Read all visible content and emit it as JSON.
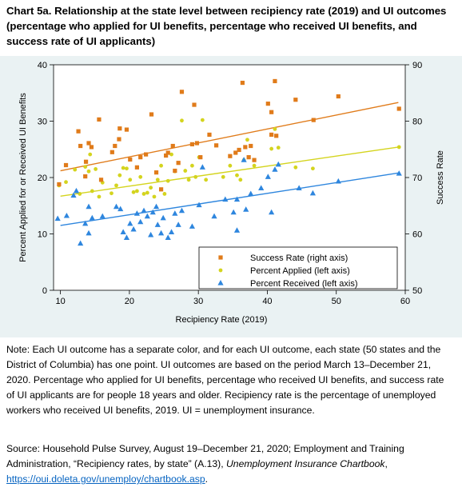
{
  "title": "Chart 5a. Relationship at the state level between recipiency rate (2019) and UI outcomes (percentage who applied for UI benefits, percentage who received UI benefits, and success rate of UI applicants)",
  "note": "Note: Each UI outcome has a separate color, and for each UI outcome, each state (50 states and the District of Columbia) has one point. UI outcomes are based on the period March 13–December 21, 2020.  Percentage who applied for UI benefits, percentage who received UI benefits, and success rate of UI applicants are for people 18 years and older. Recipiency rate is the percentage of unemployed workers who received UI benefits, 2019. UI = unemployment insurance.",
  "source": {
    "prefix": "Source: Household Pulse Survey, August 19–December 21, 2020;  Employment and Training Administration, “Recipiency rates, by state” (A.13), ",
    "italic": "Unemployment Insurance Chartbook",
    "comma": ", ",
    "link": "https://oui.doleta.gov/unemploy/chartbook.asp",
    "end": "."
  },
  "colors": {
    "success": "#e07b1a",
    "applied": "#d4d41e",
    "received": "#2e86de",
    "plot_bg": "#eaf2f3"
  },
  "chart_data": {
    "type": "scatter",
    "xlabel": "Recipiency Rate (2019)",
    "ylabel_left": "Percent Applied for or Received UI Benefits",
    "ylabel_right": "Success Rate",
    "xlim": [
      9,
      60
    ],
    "ylim_left": [
      0,
      40
    ],
    "ylim_right": [
      50,
      90
    ],
    "x_ticks": [
      10,
      20,
      30,
      40,
      50,
      60
    ],
    "y_ticks_left": [
      0,
      10,
      20,
      30,
      40
    ],
    "y_ticks_right": [
      50,
      60,
      70,
      80,
      90
    ],
    "grid": false,
    "legend_position": "bottom-right",
    "series": [
      {
        "name": "Success Rate (right axis)",
        "axis": "right",
        "marker": "square",
        "points": [
          [
            9.8,
            68.8
          ],
          [
            10.8,
            72.2
          ],
          [
            12.6,
            78.2
          ],
          [
            12.9,
            75.6
          ],
          [
            13.6,
            70.2
          ],
          [
            13.7,
            72.8
          ],
          [
            14.1,
            76.1
          ],
          [
            14.5,
            75.4
          ],
          [
            15.6,
            80.3
          ],
          [
            15.9,
            69.6
          ],
          [
            17.5,
            74.5
          ],
          [
            17.9,
            75.6
          ],
          [
            18.5,
            76.8
          ],
          [
            18.6,
            78.7
          ],
          [
            19.6,
            78.5
          ],
          [
            20.1,
            73.2
          ],
          [
            21.1,
            71.8
          ],
          [
            21.6,
            73.6
          ],
          [
            22.4,
            74.1
          ],
          [
            23.2,
            81.2
          ],
          [
            23.9,
            70.9
          ],
          [
            24.6,
            67.9
          ],
          [
            25.3,
            73.9
          ],
          [
            25.6,
            74.4
          ],
          [
            26.3,
            75.6
          ],
          [
            26.6,
            71.2
          ],
          [
            27.1,
            72.6
          ],
          [
            27.6,
            85.2
          ],
          [
            29.1,
            75.9
          ],
          [
            29.4,
            82.9
          ],
          [
            29.8,
            76.1
          ],
          [
            30.3,
            73.6
          ],
          [
            31.6,
            77.6
          ],
          [
            32.6,
            75.7
          ],
          [
            34.6,
            73.8
          ],
          [
            35.4,
            74.4
          ],
          [
            35.9,
            74.9
          ],
          [
            36.4,
            86.8
          ],
          [
            36.8,
            75.4
          ],
          [
            37.6,
            75.6
          ],
          [
            37.3,
            73.6
          ],
          [
            38.1,
            73.1
          ],
          [
            40.1,
            83.1
          ],
          [
            40.6,
            81.6
          ],
          [
            41.1,
            87.1
          ],
          [
            40.6,
            77.6
          ],
          [
            41.3,
            77.4
          ],
          [
            44.1,
            83.8
          ],
          [
            46.7,
            80.2
          ],
          [
            50.3,
            84.4
          ],
          [
            59.1,
            82.2
          ]
        ]
      },
      {
        "name": "Percent Applied (left axis)",
        "axis": "left",
        "marker": "circle",
        "points": [
          [
            9.8,
            18.6
          ],
          [
            10.8,
            19.2
          ],
          [
            12.1,
            21.4
          ],
          [
            12.8,
            17.1
          ],
          [
            13.6,
            21.9
          ],
          [
            14.1,
            21.1
          ],
          [
            14.3,
            24.1
          ],
          [
            14.6,
            17.6
          ],
          [
            15.1,
            21.5
          ],
          [
            15.6,
            16.6
          ],
          [
            16.1,
            19.1
          ],
          [
            17.4,
            17.2
          ],
          [
            18.1,
            18.6
          ],
          [
            18.6,
            20.4
          ],
          [
            19.1,
            21.7
          ],
          [
            19.6,
            21.6
          ],
          [
            20.1,
            19.6
          ],
          [
            20.6,
            17.4
          ],
          [
            21.1,
            17.6
          ],
          [
            21.6,
            20.1
          ],
          [
            22.1,
            17.1
          ],
          [
            22.6,
            17.3
          ],
          [
            23.1,
            18.2
          ],
          [
            23.6,
            16.6
          ],
          [
            24.1,
            19.6
          ],
          [
            24.6,
            22.1
          ],
          [
            25.1,
            17.1
          ],
          [
            25.6,
            19.4
          ],
          [
            26.1,
            24.1
          ],
          [
            26.6,
            21.1
          ],
          [
            27.6,
            30.1
          ],
          [
            28.1,
            21.2
          ],
          [
            28.6,
            19.6
          ],
          [
            29.1,
            22.1
          ],
          [
            29.6,
            20.1
          ],
          [
            30.1,
            23.6
          ],
          [
            30.6,
            30.2
          ],
          [
            31.1,
            19.6
          ],
          [
            33.6,
            20.1
          ],
          [
            34.6,
            22.1
          ],
          [
            35.6,
            20.4
          ],
          [
            36.1,
            19.6
          ],
          [
            36.6,
            23.1
          ],
          [
            37.1,
            26.7
          ],
          [
            38.1,
            22.1
          ],
          [
            40.6,
            25.1
          ],
          [
            41.1,
            28.6
          ],
          [
            41.6,
            25.3
          ],
          [
            44.1,
            21.8
          ],
          [
            46.6,
            21.6
          ],
          [
            59.1,
            25.4
          ]
        ]
      },
      {
        "name": "Percent Received (left axis)",
        "axis": "left",
        "marker": "triangle",
        "points": [
          [
            9.6,
            12.7
          ],
          [
            10.9,
            13.2
          ],
          [
            11.9,
            16.8
          ],
          [
            12.3,
            17.6
          ],
          [
            12.9,
            8.3
          ],
          [
            13.6,
            11.8
          ],
          [
            14.1,
            10.1
          ],
          [
            14.6,
            12.8
          ],
          [
            14.1,
            14.8
          ],
          [
            16.1,
            13.1
          ],
          [
            18.1,
            14.8
          ],
          [
            18.7,
            14.4
          ],
          [
            19.1,
            10.3
          ],
          [
            19.6,
            9.3
          ],
          [
            20.1,
            11.8
          ],
          [
            20.6,
            10.8
          ],
          [
            21.1,
            13.6
          ],
          [
            21.6,
            12.1
          ],
          [
            22.1,
            14.1
          ],
          [
            22.6,
            13.1
          ],
          [
            23.1,
            9.8
          ],
          [
            23.4,
            13.8
          ],
          [
            23.9,
            14.8
          ],
          [
            24.1,
            11.6
          ],
          [
            24.6,
            10.1
          ],
          [
            24.9,
            12.8
          ],
          [
            25.6,
            9.3
          ],
          [
            26.1,
            10.3
          ],
          [
            26.6,
            13.6
          ],
          [
            27.1,
            11.6
          ],
          [
            27.6,
            14.1
          ],
          [
            29.1,
            11.3
          ],
          [
            30.1,
            15.1
          ],
          [
            30.6,
            21.8
          ],
          [
            32.3,
            13.1
          ],
          [
            33.9,
            16.1
          ],
          [
            35.1,
            13.8
          ],
          [
            35.6,
            16.1
          ],
          [
            36.6,
            23.1
          ],
          [
            36.9,
            14.3
          ],
          [
            37.6,
            17.1
          ],
          [
            39.1,
            18.1
          ],
          [
            40.1,
            20.1
          ],
          [
            40.6,
            13.8
          ],
          [
            41.1,
            21.4
          ],
          [
            41.6,
            22.3
          ],
          [
            44.6,
            18.1
          ],
          [
            46.6,
            17.2
          ],
          [
            50.3,
            19.3
          ],
          [
            59.1,
            20.7
          ],
          [
            35.6,
            10.6
          ]
        ]
      }
    ],
    "trend_lines": [
      {
        "series": "Success Rate (right axis)",
        "x": [
          10,
          59
        ],
        "y": [
          71.2,
          83.3
        ]
      },
      {
        "series": "Percent Applied (left axis)",
        "x": [
          10,
          59
        ],
        "y": [
          16.7,
          25.4
        ]
      },
      {
        "series": "Percent Received (left axis)",
        "x": [
          10,
          59
        ],
        "y": [
          11.5,
          20.8
        ]
      }
    ]
  }
}
